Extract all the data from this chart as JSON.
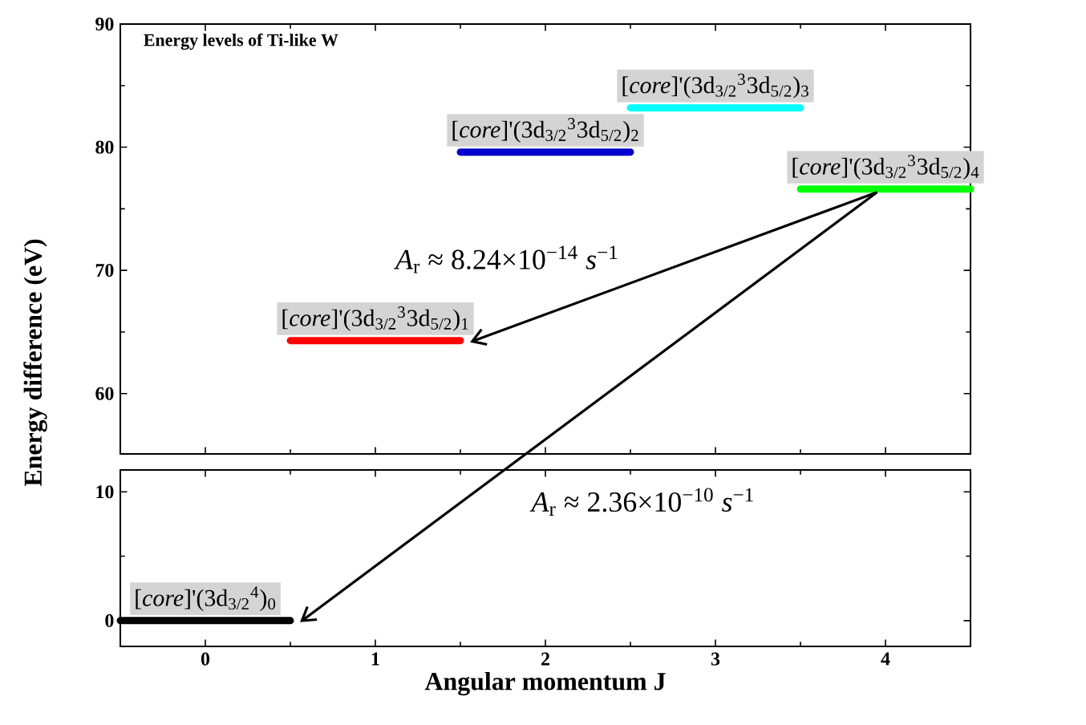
{
  "chart_data": [
    {
      "type": "line",
      "title": "Energy levels of Ti-like W",
      "ylabel": "Energy difference (eV)",
      "xlim": [
        -0.5,
        4.5
      ],
      "ylim": [
        55.1,
        90
      ],
      "yticks": [
        60,
        70,
        80,
        90
      ],
      "tick_labels": "y",
      "marker": "none",
      "annotations": [
        "*A*$_{r}$ ≈ 8.24×10$^{−14}$ *s*$^{−1}$"
      ],
      "series": [
        {
          "name": "[*core*]'(3d$_{3/2}$$^{3}$3d$_{5/2}$)$_{1}$",
          "color": "#ff0000",
          "x": [
            0.5,
            1.5
          ],
          "values": [
            64.3,
            64.3
          ]
        },
        {
          "name": "[*core*]'(3d$_{3/2}$$^{3}$3d$_{5/2}$)$_{2}$",
          "color": "#0000cc",
          "x": [
            1.5,
            2.5
          ],
          "values": [
            79.6,
            79.6
          ]
        },
        {
          "name": "[*core*]'(3d$_{3/2}$$^{3}$3d$_{5/2}$)$_{3}$",
          "color": "#00ffff",
          "x": [
            2.5,
            3.5
          ],
          "values": [
            83.2,
            83.2
          ]
        },
        {
          "name": "[*core*]'(3d$_{3/2}$$^{3}$3d$_{5/2}$)$_{4}$",
          "color": "#00ff00",
          "x": [
            3.5,
            4.5
          ],
          "values": [
            76.6,
            76.6
          ]
        }
      ]
    },
    {
      "type": "line",
      "xlabel": "Angular momentum J",
      "xlim": [
        -0.5,
        4.5
      ],
      "xticks": [
        0,
        1,
        2,
        3,
        4
      ],
      "ylim": [
        -2.0,
        11.7
      ],
      "yticks": [
        0,
        10
      ],
      "marker": "none",
      "annotations": [
        "*A*$_{r}$ ≈ 2.36×10$^{−10}$ *s*$^{−1}$"
      ],
      "series": [
        {
          "name": "[*core*]'(3d$_{3/2}$$^{4}$)$_{0}$",
          "color": "#000000",
          "x": [
            -0.5,
            0.5
          ],
          "values": [
            0,
            0
          ]
        }
      ]
    }
  ]
}
